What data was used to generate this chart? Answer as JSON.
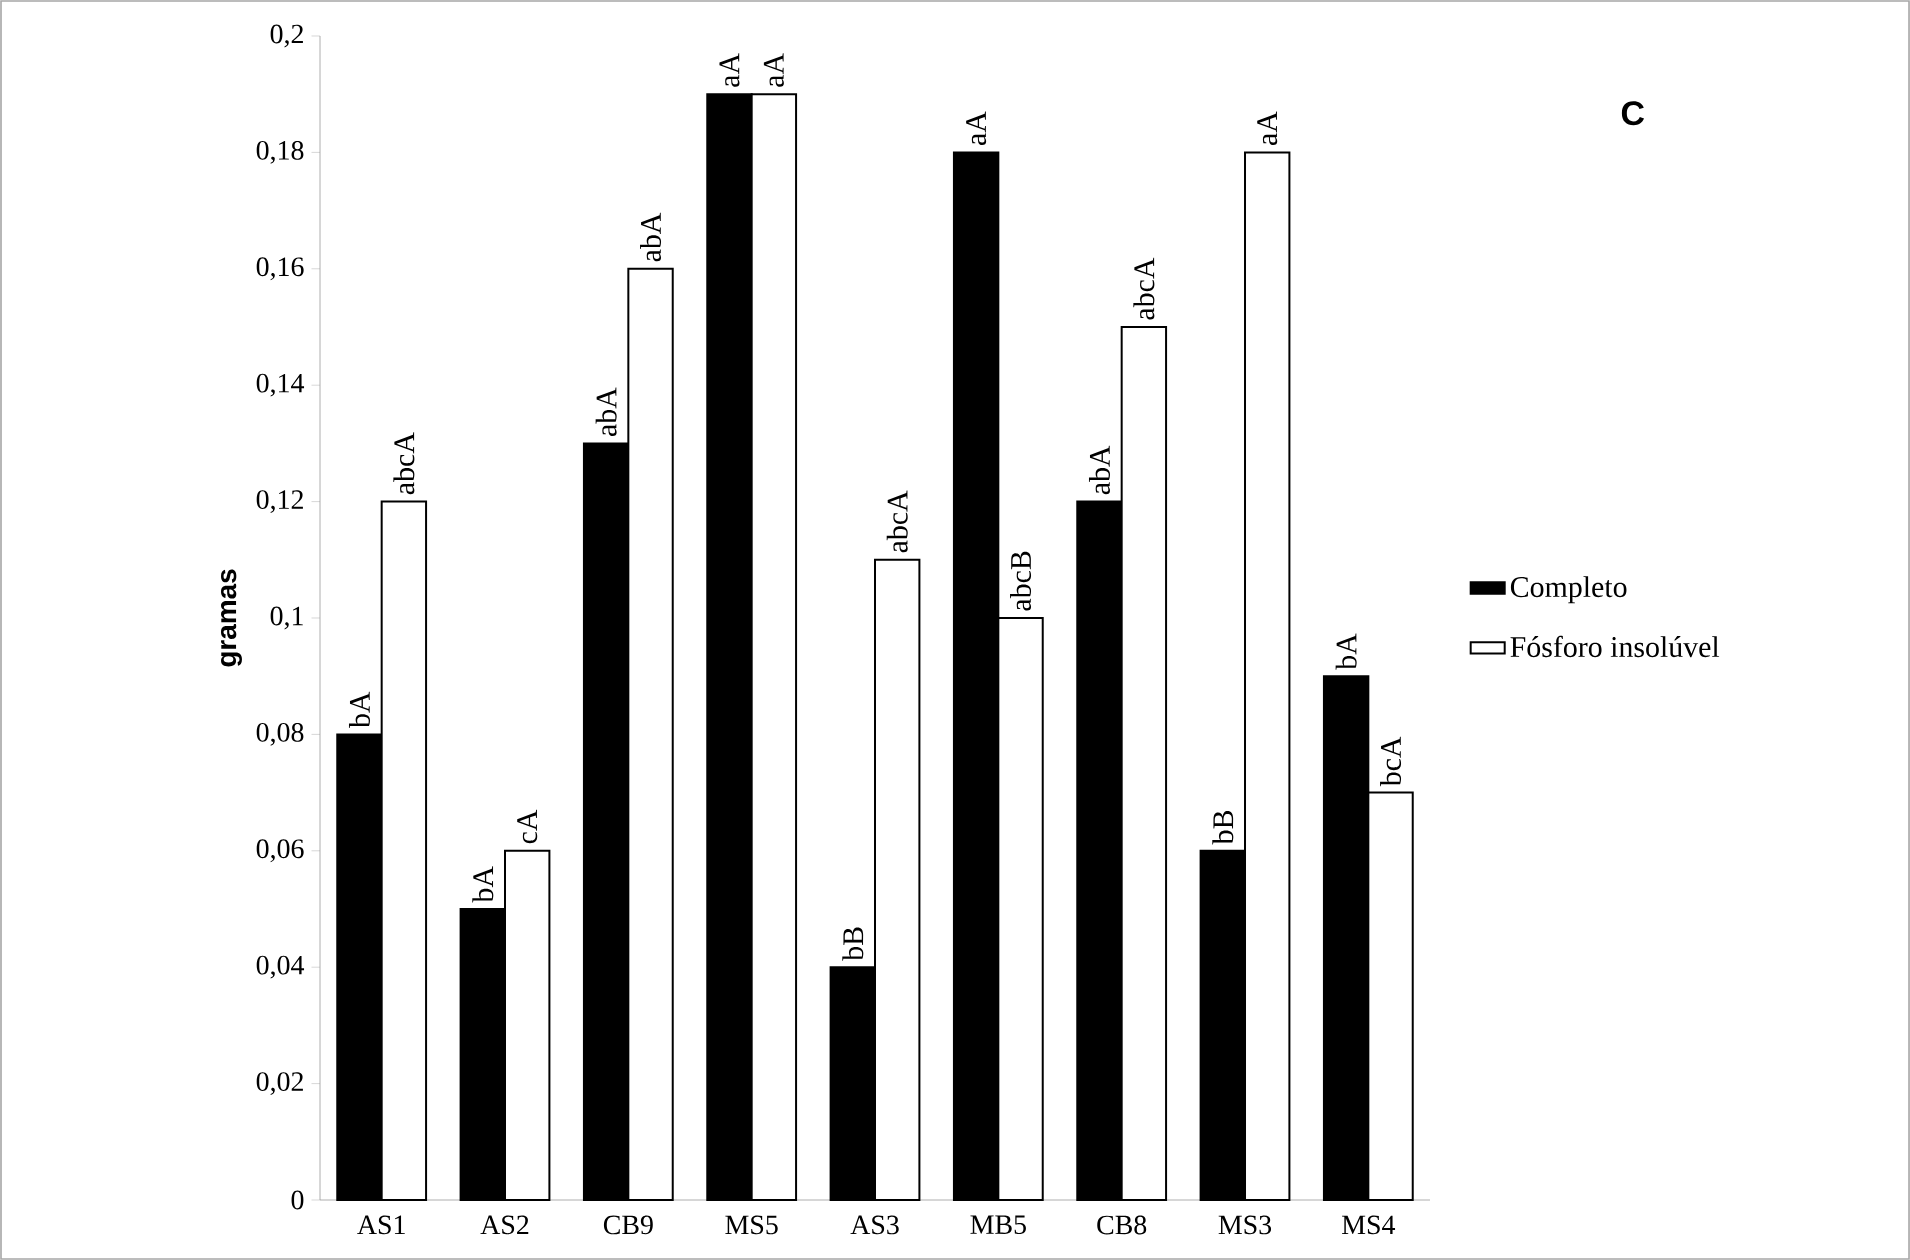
{
  "chart_data": {
    "type": "bar",
    "ylabel": "gramas",
    "categories": [
      "AS1",
      "AS2",
      "CB9",
      "MS5",
      "AS3",
      "MB5",
      "CB8",
      "MS3",
      "MS4"
    ],
    "series": [
      {
        "name": "Completo",
        "color": "#000000",
        "values": [
          0.08,
          0.05,
          0.13,
          0.19,
          0.04,
          0.18,
          0.12,
          0.06,
          0.09
        ]
      },
      {
        "name": "Fósforo insolúvel",
        "color": "#ffffff",
        "values": [
          0.12,
          0.06,
          0.16,
          0.19,
          0.11,
          0.1,
          0.15,
          0.18,
          0.07
        ]
      }
    ],
    "ylim": [
      0,
      0.2
    ],
    "yticks": [
      0,
      {
        "value": 0.02,
        "label": "0,02"
      },
      {
        "value": 0.04,
        "label": "0,04"
      },
      {
        "value": 0.06,
        "label": "0,06"
      },
      {
        "value": 0.08,
        "label": "0,08"
      },
      {
        "value": 0.1,
        "label": "0,1"
      },
      {
        "value": 0.12,
        "label": "0,12"
      },
      {
        "value": 0.14,
        "label": "0,14"
      },
      {
        "value": 0.16,
        "label": "0,16"
      },
      {
        "value": 0.18,
        "label": "0,18"
      },
      {
        "value": 0.2,
        "label": "0,2"
      }
    ],
    "legend": "right",
    "grid": false,
    "annotations": [
      "C",
      {
        "text": "bA",
        "x": "AS1",
        "y": 0.08
      },
      {
        "text": "abcA",
        "x": "AS1",
        "y": 0.12
      },
      {
        "text": "bA",
        "x": "AS2",
        "y": 0.05
      },
      {
        "text": "cA",
        "x": "AS2",
        "y": 0.06
      },
      {
        "text": "abA",
        "x": "CB9",
        "y": 0.13
      },
      {
        "text": "abA",
        "x": "CB9",
        "y": 0.16
      },
      {
        "text": "aA",
        "x": "MS5",
        "y": 0.19
      },
      {
        "text": "aA",
        "x": "MS5",
        "y": 0.19
      },
      {
        "text": "bB",
        "x": "AS3",
        "y": 0.04
      },
      {
        "text": "abcA",
        "x": "AS3",
        "y": 0.11
      },
      {
        "text": "aA",
        "x": "MB5",
        "y": 0.18
      },
      {
        "text": "abcB",
        "x": "MB5",
        "y": 0.1
      },
      {
        "text": "abA",
        "x": "CB8",
        "y": 0.12
      },
      {
        "text": "abcA",
        "x": "CB8",
        "y": 0.15
      },
      {
        "text": "bB",
        "x": "MS3",
        "y": 0.06
      },
      {
        "text": "aA",
        "x": "MS3",
        "y": 0.18
      },
      {
        "text": "bA",
        "x": "MS4",
        "y": 0.09
      },
      {
        "text": "bcA",
        "x": "MS4",
        "y": 0.07
      }
    ]
  }
}
